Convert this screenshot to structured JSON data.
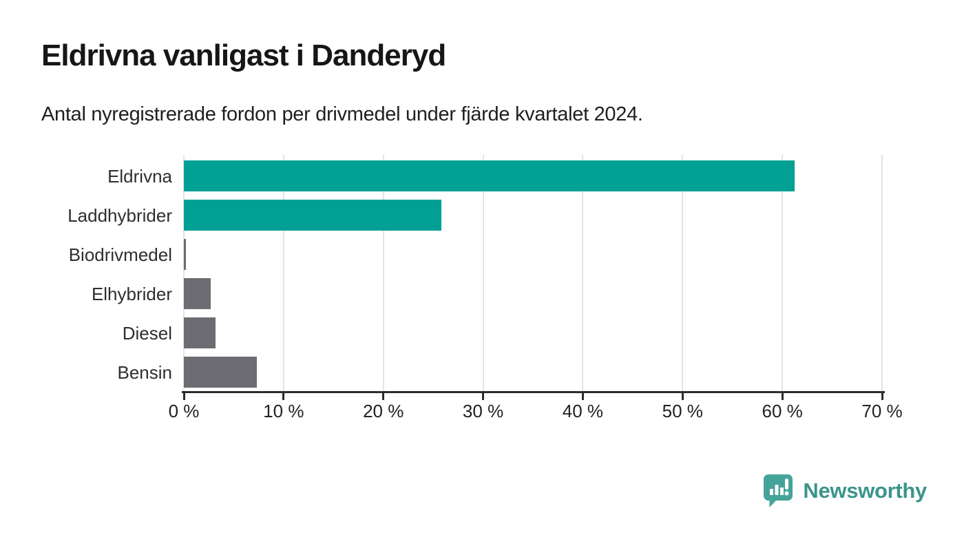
{
  "header": {
    "title": "Eldrivna vanligast i Danderyd",
    "subtitle": "Antal nyregistrerade fordon per drivmedel under fjärde kvartalet 2024."
  },
  "chart_data": {
    "type": "bar",
    "orientation": "horizontal",
    "title": "Eldrivna vanligast i Danderyd",
    "subtitle": "Antal nyregistrerade fordon per drivmedel under fjärde kvartalet 2024.",
    "categories": [
      "Eldrivna",
      "Laddhybrider",
      "Biodrivmedel",
      "Elhybrider",
      "Diesel",
      "Bensin"
    ],
    "values": [
      61.2,
      25.8,
      0.2,
      2.7,
      3.2,
      7.3
    ],
    "unit": "%",
    "bar_colors": [
      "#00a094",
      "#00a094",
      "#6c6c72",
      "#6c6c72",
      "#6c6c72",
      "#6c6c72"
    ],
    "xlim": [
      0,
      70
    ],
    "x_ticks": [
      0,
      10,
      20,
      30,
      40,
      50,
      60,
      70
    ],
    "x_tick_labels": [
      "0 %",
      "10 %",
      "20 %",
      "30 %",
      "40 %",
      "50 %",
      "60 %",
      "70 %"
    ],
    "grid": true,
    "legend": "none"
  },
  "colors": {
    "accent_teal": "#00a094",
    "bar_gray": "#6c6c72",
    "axis": "#2b2b2b",
    "gridline": "#e4e4e6",
    "logo_icon_teal": "#46a39a",
    "logo_text_teal": "#3c948b"
  },
  "footer": {
    "brand": "Newsworthy"
  }
}
